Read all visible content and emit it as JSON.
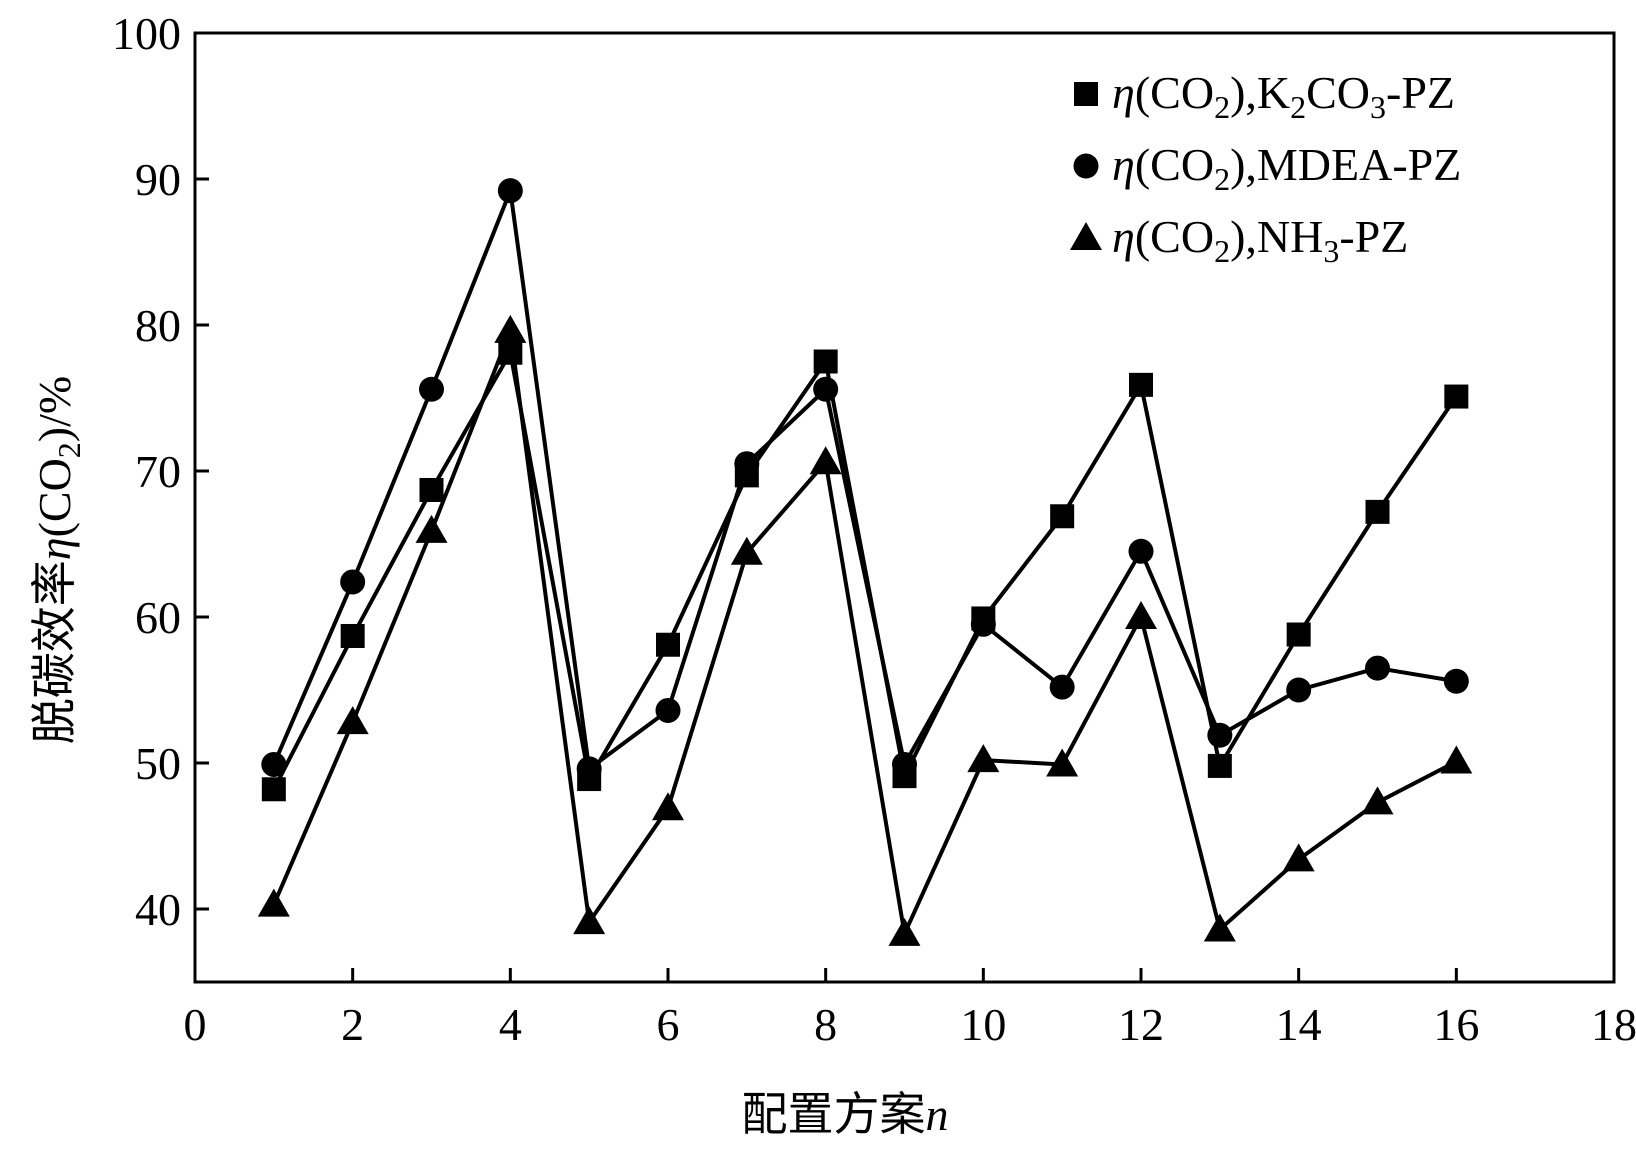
{
  "chart_data": {
    "type": "line",
    "title": "",
    "xlabel": {
      "text": "配置方案",
      "var": "n"
    },
    "ylabel": {
      "prefix": "脱碳效率",
      "eta": "η",
      "open": "(CO",
      "sub": "2",
      "close": ")/%"
    },
    "xlim": [
      0,
      18
    ],
    "ylim": [
      35,
      100
    ],
    "xticks": [
      0,
      2,
      4,
      6,
      8,
      10,
      12,
      14,
      16,
      18
    ],
    "yticks": [
      40,
      50,
      60,
      70,
      80,
      90,
      100
    ],
    "x": [
      1,
      2,
      3,
      4,
      5,
      6,
      7,
      8,
      9,
      10,
      11,
      12,
      13,
      14,
      15,
      16
    ],
    "grid": false,
    "legend_position": "top-right",
    "series": [
      {
        "marker": "square",
        "legend": {
          "eta": "η",
          "open": "(CO",
          "sub": "2",
          "mid": "),K",
          "sub2": "2",
          "mid2": "CO",
          "sub3": "3",
          "tail": "-PZ"
        },
        "values": [
          48.2,
          58.7,
          68.7,
          78.1,
          48.9,
          58.1,
          69.7,
          77.5,
          49.1,
          59.9,
          66.9,
          75.9,
          49.8,
          58.8,
          67.2,
          75.1
        ]
      },
      {
        "marker": "circle",
        "legend": {
          "eta": "η",
          "open": "(CO",
          "sub": "2",
          "mid": "),MDEA",
          "sub2": "",
          "mid2": "",
          "sub3": "",
          "tail": "-PZ"
        },
        "values": [
          49.9,
          62.4,
          75.6,
          89.2,
          49.6,
          53.6,
          70.5,
          75.6,
          49.9,
          59.5,
          55.2,
          64.5,
          51.9,
          55.0,
          56.5,
          55.6
        ]
      },
      {
        "marker": "triangle",
        "legend": {
          "eta": "η",
          "open": "(CO",
          "sub": "2",
          "mid": "),NH",
          "sub2": "3",
          "mid2": "",
          "sub3": "",
          "tail": "-PZ"
        },
        "values": [
          40.3,
          52.8,
          65.9,
          79.6,
          39.1,
          46.9,
          64.4,
          70.6,
          38.3,
          50.2,
          49.9,
          60.0,
          38.6,
          43.4,
          47.3,
          50.1
        ]
      }
    ]
  }
}
